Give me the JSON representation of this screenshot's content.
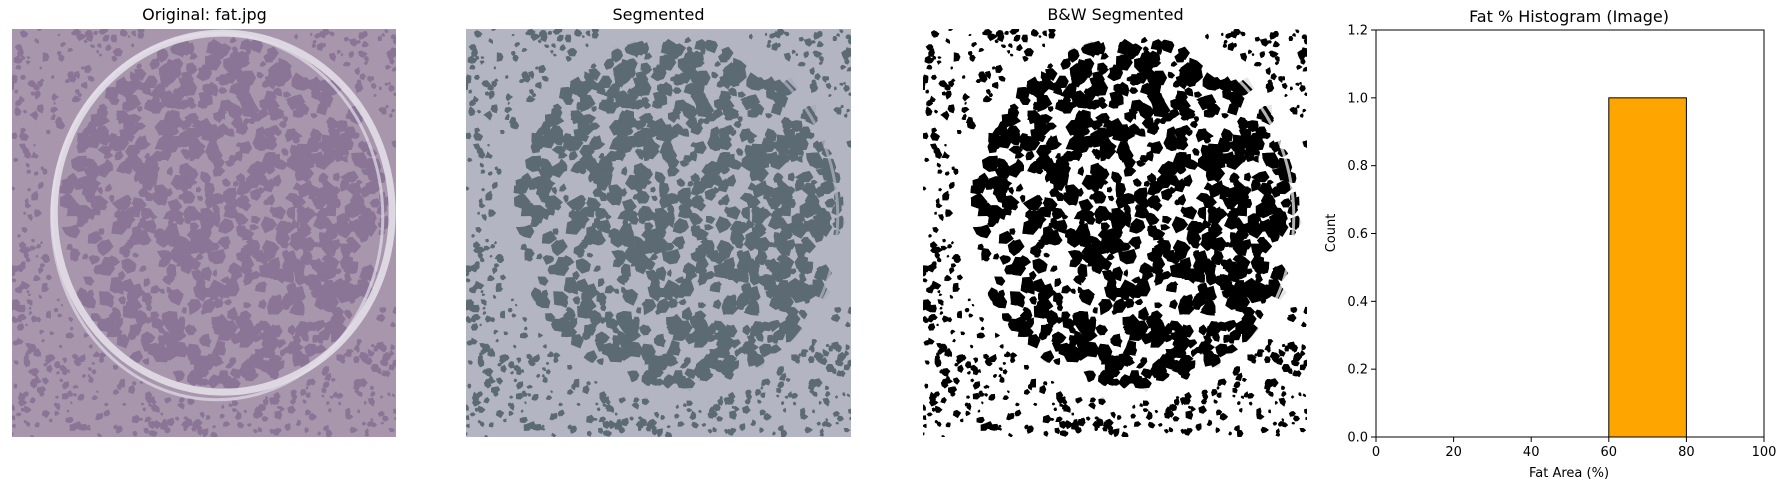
{
  "panels": {
    "original_title": "Original: fat.jpg",
    "segmented_title": "Segmented",
    "bw_title": "B&W Segmented",
    "hist_title": "Fat % Histogram (Image)"
  },
  "colors": {
    "original_bg": "#a896ad",
    "original_cell": "#8a7596",
    "original_membrane": "#e2dee8",
    "segmented_bg": "#b3b5c3",
    "segmented_cell": "#5b6a73",
    "bw_bg": "#ffffff",
    "bw_cell": "#000000",
    "bar_fill": "#ffa500",
    "bar_edge": "#000000"
  },
  "chart_data": {
    "type": "bar",
    "title": "Fat % Histogram (Image)",
    "xlabel": "Fat Area (%)",
    "ylabel": "Count",
    "xlim": [
      0,
      100
    ],
    "ylim": [
      0,
      1.2
    ],
    "xticks": [
      "0",
      "20",
      "40",
      "60",
      "80",
      "100"
    ],
    "yticks": [
      "0.0",
      "0.2",
      "0.4",
      "0.6",
      "0.8",
      "1.0",
      "1.2"
    ],
    "bins": [
      {
        "x0": 60,
        "x1": 80,
        "count": 1
      }
    ]
  }
}
